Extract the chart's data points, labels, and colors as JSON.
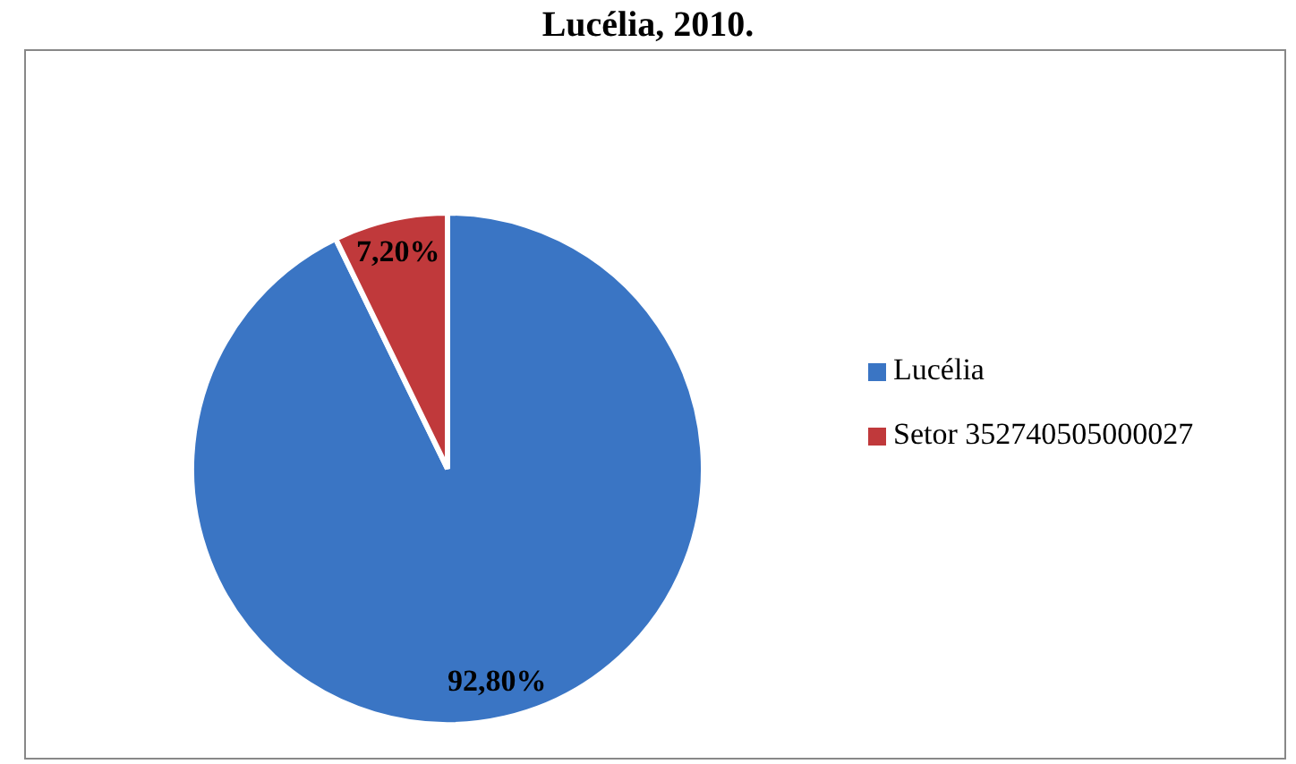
{
  "chart_data": {
    "type": "pie",
    "title": "Lucélia, 2010.",
    "categories": [
      "Lucélia",
      "Setor 352740505000027"
    ],
    "values": [
      92.8,
      7.2
    ],
    "colors": [
      "#3a75c4",
      "#c0393b"
    ],
    "value_labels": [
      "92,80%",
      "7,20%"
    ],
    "legend": "right"
  }
}
